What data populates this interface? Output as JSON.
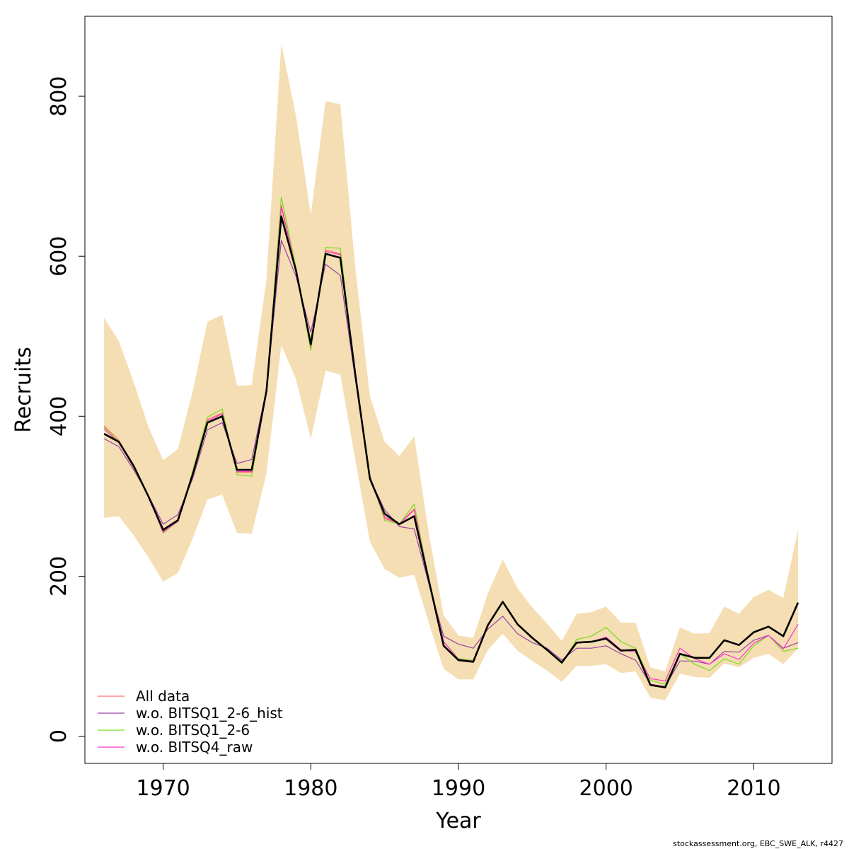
{
  "chart_data": {
    "type": "line",
    "xlabel": "Year",
    "ylabel": "Recruits",
    "xlim": [
      1964.7,
      2015.3
    ],
    "ylim": [
      -34,
      900
    ],
    "x_ticks": [
      1970,
      1980,
      1990,
      2000,
      2010
    ],
    "y_ticks": [
      0,
      200,
      400,
      600,
      800
    ],
    "grid": false,
    "legend_position": "bottom-left",
    "band_color": "#F5DEB3",
    "x": [
      1966,
      1967,
      1968,
      1969,
      1970,
      1971,
      1972,
      1973,
      1974,
      1975,
      1976,
      1977,
      1978,
      1979,
      1980,
      1981,
      1982,
      1983,
      1984,
      1985,
      1986,
      1987,
      1988,
      1989,
      1990,
      1991,
      1992,
      1993,
      1994,
      1995,
      1996,
      1997,
      1998,
      1999,
      2000,
      2001,
      2002,
      2003,
      2004,
      2005,
      2006,
      2007,
      2008,
      2009,
      2010,
      2011,
      2012,
      2013
    ],
    "estimate": [
      378,
      368,
      338,
      300,
      258,
      270,
      327,
      392,
      400,
      333,
      333,
      432,
      650,
      582,
      490,
      603,
      598,
      454,
      322,
      278,
      265,
      275,
      194,
      113,
      95,
      93,
      139,
      168,
      140,
      123,
      108,
      92,
      117,
      118,
      122,
      107,
      108,
      64,
      61,
      103,
      98,
      98,
      120,
      114,
      130,
      137,
      125,
      167
    ],
    "upper": [
      523,
      494,
      443,
      387,
      345,
      359,
      431,
      518,
      527,
      438,
      439,
      572,
      866,
      775,
      652,
      794,
      790,
      588,
      425,
      368,
      350,
      375,
      252,
      151,
      126,
      123,
      179,
      221,
      185,
      161,
      141,
      119,
      153,
      155,
      162,
      142,
      142,
      86,
      81,
      136,
      128,
      129,
      162,
      153,
      174,
      183,
      173,
      258
    ],
    "lower": [
      273,
      275,
      251,
      224,
      193,
      204,
      247,
      296,
      302,
      254,
      253,
      329,
      489,
      446,
      372,
      457,
      452,
      347,
      243,
      209,
      198,
      202,
      141,
      84,
      71,
      71,
      108,
      128,
      107,
      94,
      82,
      68,
      88,
      88,
      90,
      79,
      81,
      48,
      45,
      78,
      74,
      73,
      91,
      86,
      98,
      103,
      90,
      110
    ],
    "series": [
      {
        "name": "All data",
        "color": "#FF6E6E",
        "values": [
          388,
          370,
          336,
          299,
          256,
          268,
          328,
          396,
          404,
          330,
          330,
          432,
          664,
          584,
          486,
          608,
          603,
          455,
          326,
          272,
          266,
          284,
          196,
          118,
          96,
          94,
          139,
          168,
          140,
          123,
          108,
          92,
          117,
          118,
          122,
          107,
          108,
          64,
          61,
          103,
          98,
          98,
          120,
          114,
          130,
          137,
          125,
          167
        ]
      },
      {
        "name": "w.o. BITSQ1_2-6_hist",
        "color": "#9B3FA8",
        "values": [
          372,
          362,
          333,
          301,
          265,
          277,
          322,
          383,
          392,
          341,
          346,
          434,
          620,
          575,
          505,
          590,
          576,
          448,
          322,
          283,
          262,
          259,
          190,
          125,
          115,
          110,
          134,
          150,
          128,
          117,
          110,
          95,
          110,
          110,
          113,
          103,
          95,
          65,
          62,
          94,
          94,
          90,
          106,
          105,
          120,
          126,
          110,
          117
        ]
      },
      {
        "name": "w.o. BITSQ1_2-6",
        "color": "#7BD91E",
        "values": [
          386,
          368,
          335,
          300,
          254,
          269,
          331,
          399,
          409,
          327,
          325,
          433,
          674,
          586,
          482,
          611,
          610,
          456,
          326,
          270,
          265,
          290,
          196,
          118,
          97,
          95,
          140,
          168,
          139,
          122,
          107,
          91,
          121,
          125,
          136,
          118,
          110,
          70,
          65,
          103,
          90,
          82,
          97,
          90,
          113,
          126,
          106,
          110
        ]
      },
      {
        "name": "w.o. BITSQ4_raw",
        "color": "#FF33CC",
        "values": [
          384,
          367,
          336,
          300,
          255,
          269,
          328,
          394,
          403,
          331,
          331,
          432,
          662,
          583,
          487,
          606,
          602,
          455,
          325,
          274,
          265,
          283,
          195,
          118,
          96,
          94,
          139,
          168,
          140,
          123,
          108,
          92,
          117,
          118,
          124,
          108,
          105,
          72,
          69,
          110,
          97,
          90,
          103,
          96,
          116,
          126,
          109,
          140
        ]
      }
    ]
  },
  "footer": {
    "credit": "stockassessment.org, EBC_SWE_ALK, r4427"
  }
}
